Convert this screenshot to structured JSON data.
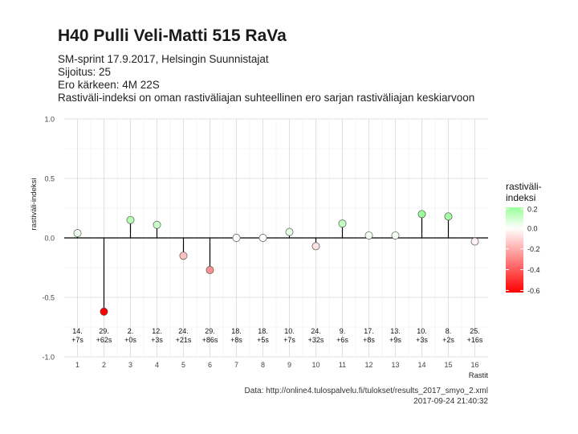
{
  "title": "H40 Pulli Veli-Matti 515 RaVa",
  "subtitle_lines": [
    "SM-sprint 17.9.2017, Helsingin Suunnistajat",
    "Sijoitus: 25",
    "Ero kärkeen: 4M 22S",
    "Rastiväli-indeksi on oman rastiväliajan suhteellinen ero sarjan rastiväliajan keskiarvoon"
  ],
  "caption_lines": [
    "Data: http://online4.tulospalvelu.fi/tulokset/results_2017_smyo_2.xml",
    "2017-09-24 21:40:32"
  ],
  "colors": {
    "low": "#ff0000",
    "mid": "#ffffff",
    "high": "#99ff99",
    "baseline": "#000000",
    "grid": "#d9d9d9",
    "grid_minor": "#ececec"
  },
  "chart_data": {
    "type": "lollipop",
    "xlabel": "Rastit",
    "ylabel": "rastiväli-indeksi",
    "xlim": [
      0.5,
      16.5
    ],
    "ylim": [
      -1.0,
      1.0
    ],
    "x_ticks": [
      1,
      2,
      3,
      4,
      5,
      6,
      7,
      8,
      9,
      10,
      11,
      12,
      13,
      14,
      15,
      16
    ],
    "y_ticks": [
      -1.0,
      -0.5,
      0.0,
      0.5,
      1.0
    ],
    "y_tick_labels": [
      "-1.0",
      "-0.5",
      "0.0",
      "0.5",
      "1.0"
    ],
    "grid": true,
    "x": [
      1,
      2,
      3,
      4,
      5,
      6,
      7,
      8,
      9,
      10,
      11,
      12,
      13,
      14,
      15,
      16
    ],
    "values": [
      0.04,
      -0.62,
      0.15,
      0.11,
      -0.15,
      -0.27,
      0.0,
      0.0,
      0.05,
      -0.07,
      0.12,
      0.02,
      0.02,
      0.2,
      0.18,
      -0.03
    ],
    "point_labels": [
      [
        "14.",
        "+7s"
      ],
      [
        "29.",
        "+62s"
      ],
      [
        "2.",
        "+0s"
      ],
      [
        "12.",
        "+3s"
      ],
      [
        "24.",
        "+21s"
      ],
      [
        "29.",
        "+86s"
      ],
      [
        "18.",
        "+8s"
      ],
      [
        "18.",
        "+5s"
      ],
      [
        "10.",
        "+7s"
      ],
      [
        "24.",
        "+32s"
      ],
      [
        "9.",
        "+6s"
      ],
      [
        "17.",
        "+8s"
      ],
      [
        "13.",
        "+9s"
      ],
      [
        "10.",
        "+3s"
      ],
      [
        "8.",
        "+2s"
      ],
      [
        "25.",
        "+16s"
      ]
    ],
    "legend": {
      "title_lines": [
        "rastiväli-",
        "indeksi"
      ],
      "placement": "right",
      "ticks": [
        0.2,
        0.0,
        -0.2,
        -0.4,
        -0.6
      ],
      "tick_labels": [
        "0.2",
        "0.0",
        "-0.2",
        "-0.4",
        "-0.6"
      ],
      "range": [
        -0.62,
        0.2
      ]
    }
  }
}
